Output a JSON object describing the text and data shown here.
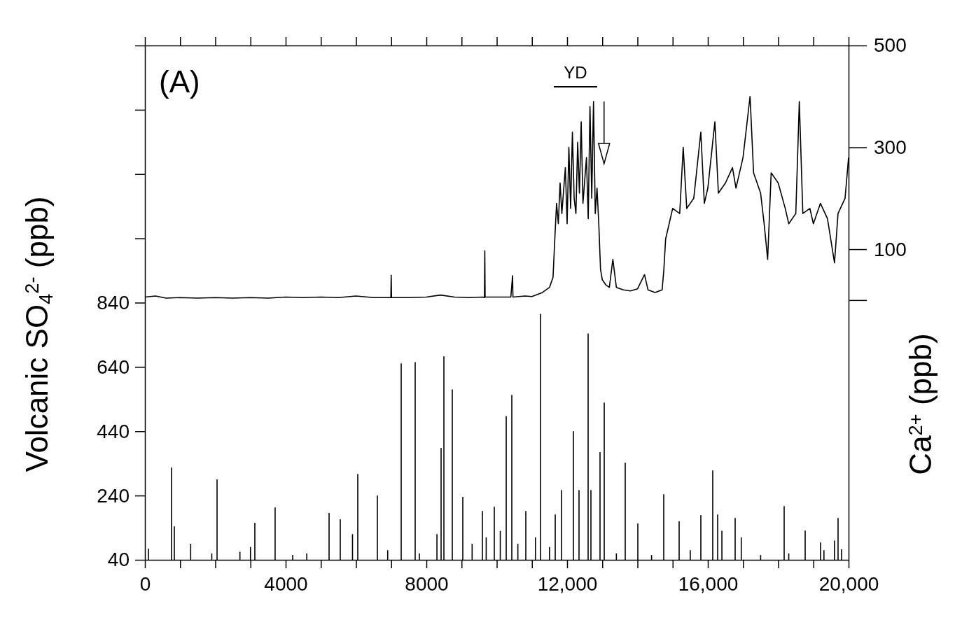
{
  "chart_data": {
    "type": "bar",
    "ylabel": "Volcanic SO$_{4}$$^{2-}$ (ppb)",
    "y2label": "Ca$^{2+}$ (ppb)",
    "annotations": [
      "(A)",
      "YD"
    ],
    "xlim": [
      0,
      20000
    ],
    "xticks": [
      0,
      {
        "value": 1000,
        "label": null
      },
      {
        "value": 2000,
        "label": null
      },
      {
        "value": 3000,
        "label": null
      },
      4000,
      {
        "value": 5000,
        "label": null
      },
      {
        "value": 6000,
        "label": null
      },
      {
        "value": 7000,
        "label": null
      },
      8000,
      {
        "value": 9000,
        "label": null
      },
      {
        "value": 10000,
        "label": null
      },
      {
        "value": 11000,
        "label": null
      },
      {
        "value": 12000,
        "label": "12,000"
      },
      {
        "value": 13000,
        "label": null
      },
      {
        "value": 14000,
        "label": null
      },
      {
        "value": 15000,
        "label": null
      },
      {
        "value": 16000,
        "label": "16,000"
      },
      {
        "value": 17000,
        "label": null
      },
      {
        "value": 18000,
        "label": null
      },
      {
        "value": 19000,
        "label": null
      },
      {
        "value": 20000,
        "label": "20,000"
      }
    ],
    "ylim": [
      40,
      1640
    ],
    "yticks": [
      40,
      240,
      440,
      640,
      840,
      {
        "value": 1040,
        "label": null
      },
      {
        "value": 1240,
        "label": null
      },
      {
        "value": 1440,
        "label": null
      },
      {
        "value": 1640,
        "label": null
      }
    ],
    "y2lim": [
      -510,
      500
    ],
    "y2ticks": [
      {
        "value": 0,
        "label": null
      },
      100,
      300,
      500
    ],
    "series": [
      {
        "color": "#000000",
        "x": [
          100,
          756,
          836,
          1300,
          1900,
          2050,
          2700,
          3000,
          3124,
          3700,
          4200,
          4600,
          5234,
          5552,
          5900,
          6050,
          6607,
          6900,
          7284,
          7681,
          7800,
          8300,
          8418,
          8498,
          8736,
          9035,
          9300,
          9592,
          9700,
          9930,
          10100,
          10269,
          10428,
          10600,
          10826,
          11100,
          11244,
          11500,
          11662,
          11841,
          12179,
          12338,
          12597,
          12677,
          12935,
          13055,
          13400,
          13652,
          14010,
          14400,
          14746,
          15184,
          15500,
          15801,
          16139,
          16279,
          16400,
          16776,
          16950,
          17500,
          18169,
          18300,
          18766,
          19204,
          19300,
          19600,
          19701,
          19801
        ],
        "values": [
          75,
          327,
          144,
          90,
          60,
          290,
          65,
          80,
          155,
          203,
          55,
          60,
          186,
          166,
          120,
          307,
          240,
          70,
          651,
          655,
          60,
          120,
          388,
          673,
          570,
          236,
          90,
          192,
          110,
          205,
          130,
          487,
          553,
          90,
          192,
          110,
          805,
          80,
          181,
          257,
          440,
          257,
          744,
          257,
          375,
          529,
          60,
          342,
          153,
          55,
          244,
          160,
          70,
          179,
          318,
          181,
          130,
          170,
          110,
          55,
          207,
          60,
          131,
          94,
          70,
          100,
          170,
          73
        ]
      },
      {
        "type": "line",
        "axis": "y2",
        "color": "#000000",
        "x": [
          0,
          300,
          600,
          1000,
          1500,
          2000,
          2500,
          3000,
          3500,
          4000,
          4500,
          5000,
          5500,
          6000,
          6500,
          6990,
          7000,
          7010,
          7500,
          8000,
          8400,
          8800,
          9200,
          9600,
          9650,
          9660,
          9670,
          10000,
          10400,
          10450,
          10460,
          10800,
          11000,
          11300,
          11500,
          11600,
          11650,
          11700,
          11750,
          11800,
          11850,
          11950,
          12000,
          12050,
          12100,
          12150,
          12200,
          12250,
          12300,
          12350,
          12400,
          12450,
          12550,
          12600,
          12650,
          12700,
          12750,
          12800,
          12850,
          12900,
          12950,
          13000,
          13100,
          13200,
          13300,
          13400,
          13600,
          13800,
          14000,
          14200,
          14300,
          14500,
          14700,
          14750,
          14800,
          14900,
          15000,
          15200,
          15300,
          15400,
          15600,
          15800,
          15900,
          16000,
          16200,
          16300,
          16500,
          16700,
          16800,
          17000,
          17200,
          17300,
          17500,
          17600,
          17700,
          17800,
          18000,
          18200,
          18300,
          18500,
          18600,
          18700,
          18900,
          19000,
          19200,
          19400,
          19600,
          19700,
          19900,
          20000
        ],
        "values": [
          6,
          8,
          4,
          5,
          4,
          5,
          4,
          5,
          4,
          6,
          5,
          6,
          5,
          8,
          5,
          5,
          49,
          5,
          5,
          6,
          10,
          6,
          5,
          6,
          5,
          97,
          6,
          6,
          6,
          48,
          6,
          8,
          7,
          15,
          25,
          45,
          120,
          190,
          150,
          230,
          170,
          260,
          150,
          300,
          180,
          330,
          200,
          170,
          310,
          210,
          350,
          190,
          280,
          160,
          380,
          200,
          390,
          170,
          220,
          150,
          60,
          40,
          30,
          25,
          80,
          25,
          20,
          18,
          22,
          50,
          20,
          15,
          20,
          60,
          120,
          150,
          180,
          170,
          300,
          180,
          200,
          330,
          190,
          220,
          350,
          210,
          230,
          260,
          220,
          280,
          400,
          250,
          210,
          150,
          80,
          250,
          230,
          180,
          150,
          170,
          390,
          170,
          180,
          150,
          190,
          160,
          73,
          170,
          200,
          280
        ]
      }
    ]
  }
}
